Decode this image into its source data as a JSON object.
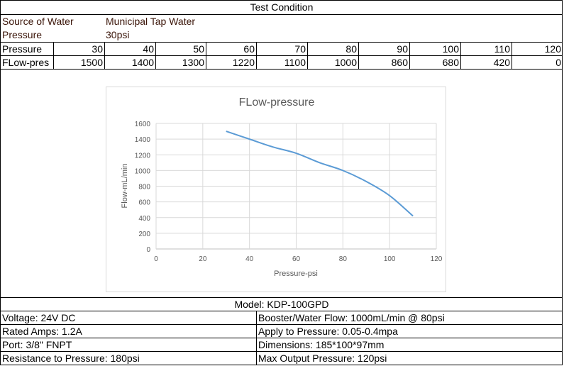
{
  "header": {
    "title": "Test Condition"
  },
  "conditions": [
    {
      "label": "Source of Water",
      "value": "Municipal Tap Water"
    },
    {
      "label": "Pressure",
      "value": "30psi"
    }
  ],
  "table": {
    "rows": [
      {
        "label": "Pressure",
        "values": [
          "30",
          "40",
          "50",
          "60",
          "70",
          "80",
          "90",
          "100",
          "110",
          "120"
        ]
      },
      {
        "label": "FLow-pres",
        "values": [
          "1500",
          "1400",
          "1300",
          "1220",
          "1100",
          "1000",
          "860",
          "680",
          "420",
          "0"
        ]
      }
    ]
  },
  "chart_data": {
    "type": "line",
    "title": "FLow-pressure",
    "xlabel": "Pressure-psi",
    "ylabel": "Flow-mL/min",
    "x": [
      30,
      40,
      50,
      60,
      70,
      80,
      90,
      100,
      110
    ],
    "series": [
      {
        "values": [
          1500,
          1400,
          1300,
          1220,
          1100,
          1000,
          860,
          680,
          420
        ],
        "color": "#5b9bd5"
      }
    ],
    "xlim": [
      0,
      120
    ],
    "ylim": [
      0,
      1600
    ],
    "xticks": [
      "0",
      "20",
      "40",
      "60",
      "80",
      "100",
      "120"
    ],
    "yticks": [
      "0",
      "200",
      "400",
      "600",
      "800",
      "1000",
      "1200",
      "1400",
      "1600"
    ],
    "grid": true,
    "smooth": true
  },
  "model": "Model: KDP-100GPD",
  "specs": [
    [
      "Voltage: 24V DC",
      "Booster/Water Flow: 1000mL/min @ 80psi"
    ],
    [
      "Rated Amps: 1.2A",
      "Apply to Pressure: 0.05-0.4mpa"
    ],
    [
      "Port: 3/8\" FNPT",
      "Dimensions: 185*100*97mm"
    ],
    [
      "Resistance to Pressure: 180psi",
      "Max Output Pressure: 120psi"
    ]
  ]
}
